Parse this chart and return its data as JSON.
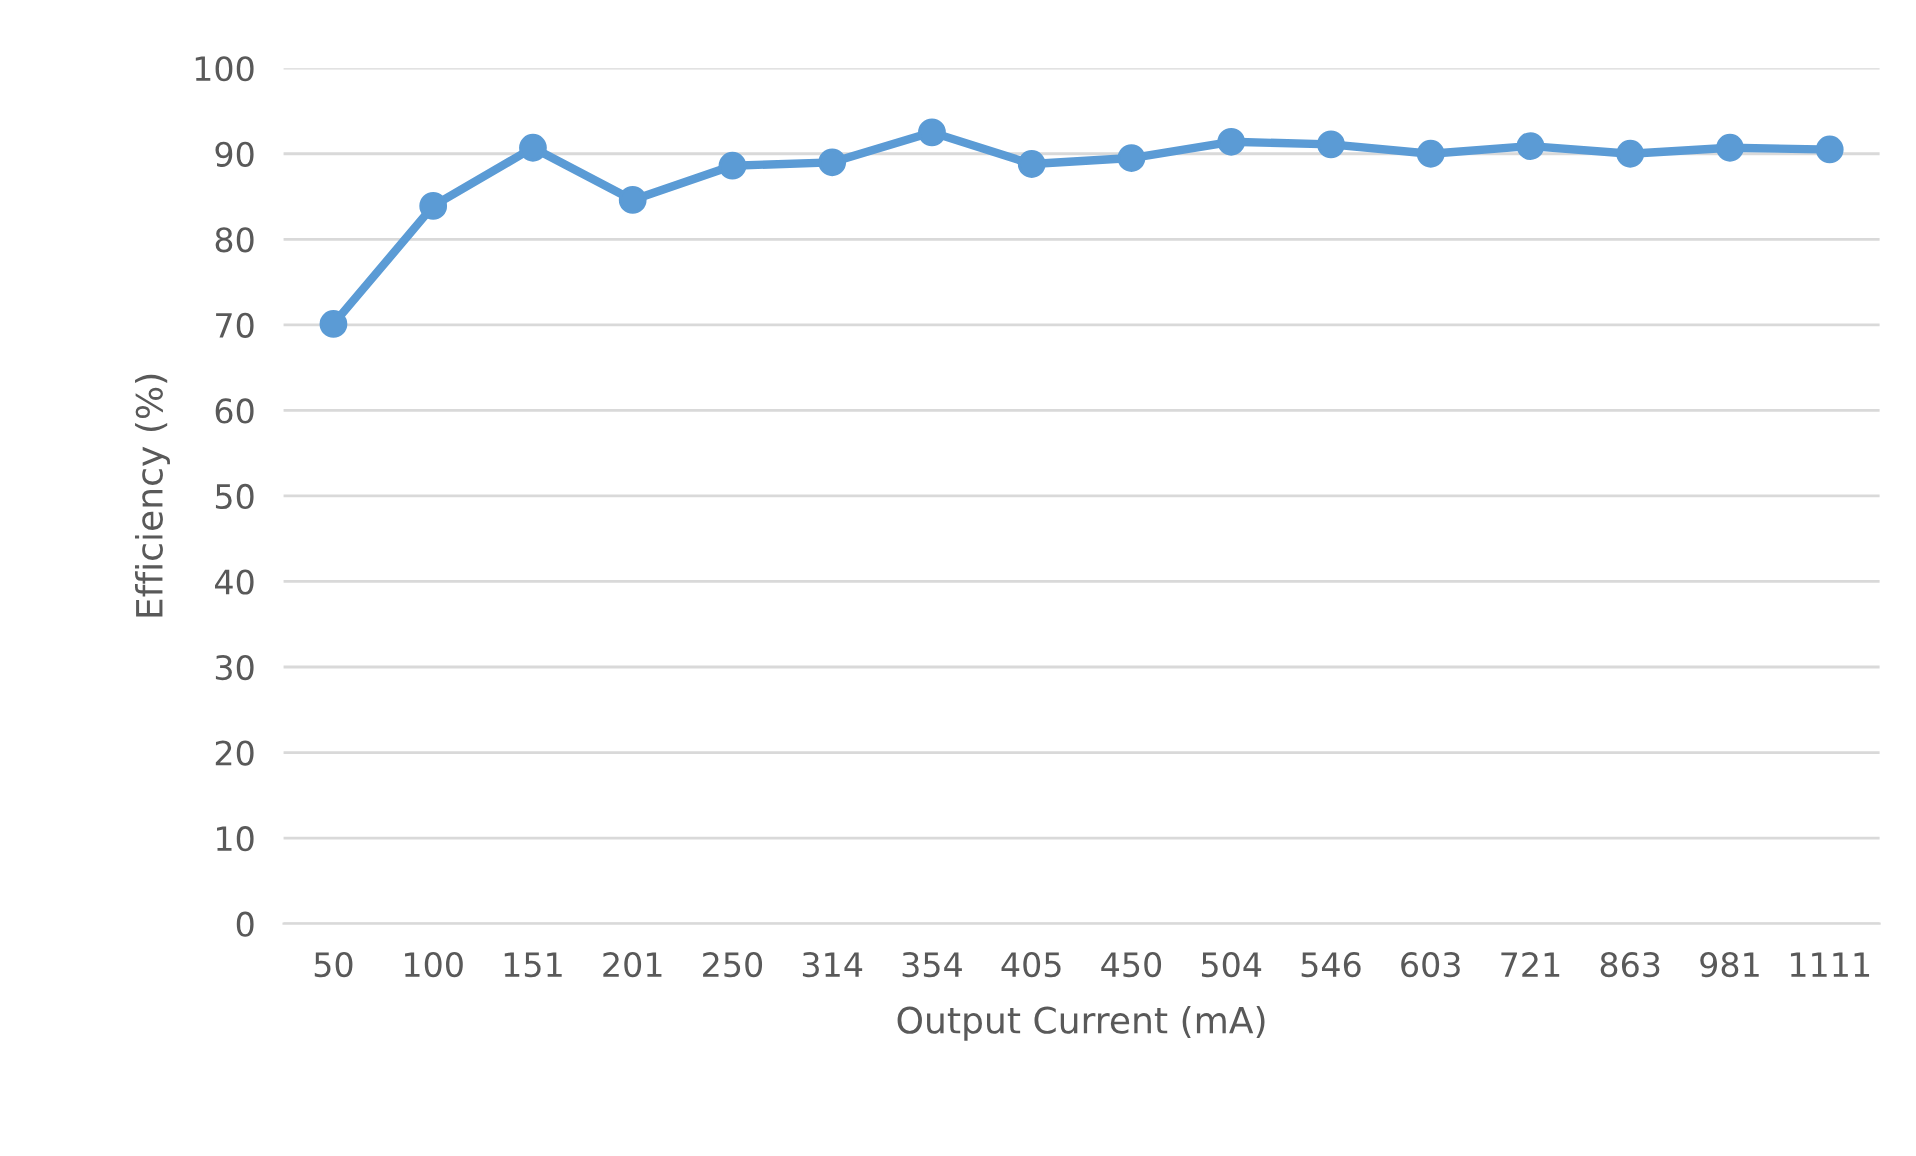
{
  "chart_data": {
    "type": "line",
    "xlabel": "Output Current (mA)",
    "ylabel": "Efficiency (%)",
    "categories": [
      "50",
      "100",
      "151",
      "201",
      "250",
      "314",
      "354",
      "405",
      "450",
      "504",
      "546",
      "603",
      "721",
      "863",
      "981",
      "1111"
    ],
    "series": [
      {
        "color": "#5b9bd5",
        "values": [
          70.1,
          83.9,
          90.7,
          84.6,
          88.6,
          89.0,
          92.5,
          88.8,
          89.5,
          91.4,
          91.1,
          90.0,
          90.9,
          90.0,
          90.7,
          90.5
        ]
      }
    ],
    "ylim": [
      0,
      100
    ],
    "yticks": [
      0,
      10,
      20,
      30,
      40,
      50,
      60,
      70,
      80,
      90,
      100
    ],
    "grid": "y",
    "marker": "circle",
    "line_style": "solid",
    "legend": false
  }
}
